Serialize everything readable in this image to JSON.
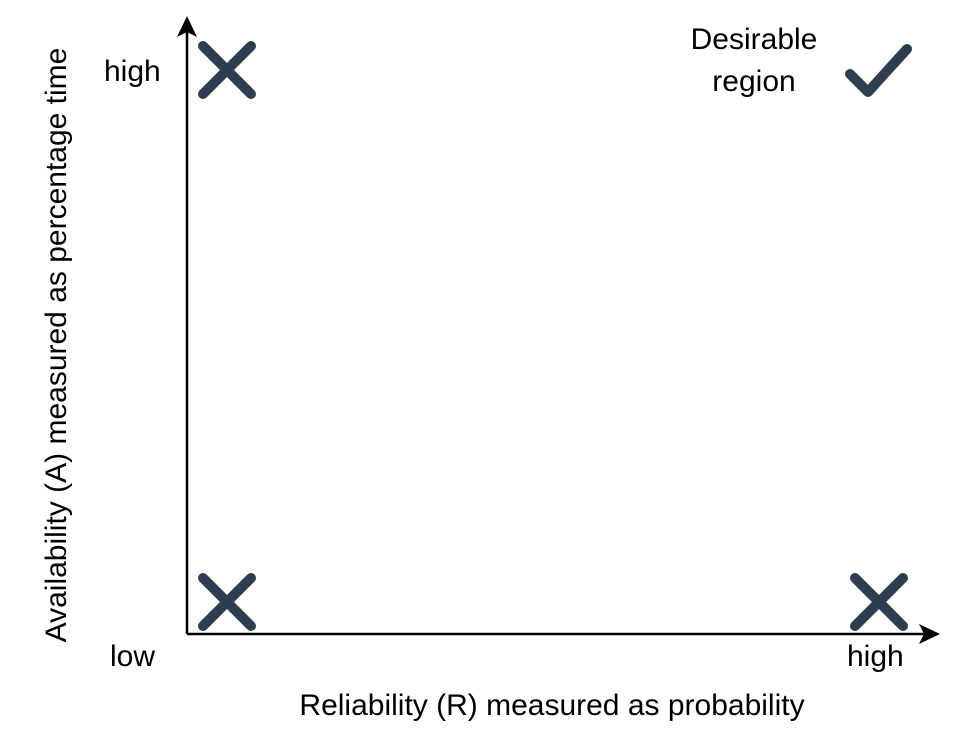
{
  "axes": {
    "x_title": "Reliability (R) measured as probability",
    "y_title": "Availability (A) measured as percentage time",
    "x_high": "high",
    "y_high": "high",
    "origin_low": "low"
  },
  "region_label": {
    "line1": "Desirable",
    "line2": "region"
  },
  "marker_color": "#2c3e50",
  "markers": [
    {
      "position": "low-R / high-A",
      "icon": "cross-icon"
    },
    {
      "position": "low-R / low-A",
      "icon": "cross-icon"
    },
    {
      "position": "high-R / low-A",
      "icon": "cross-icon"
    },
    {
      "position": "high-R / high-A",
      "icon": "check-icon"
    }
  ]
}
